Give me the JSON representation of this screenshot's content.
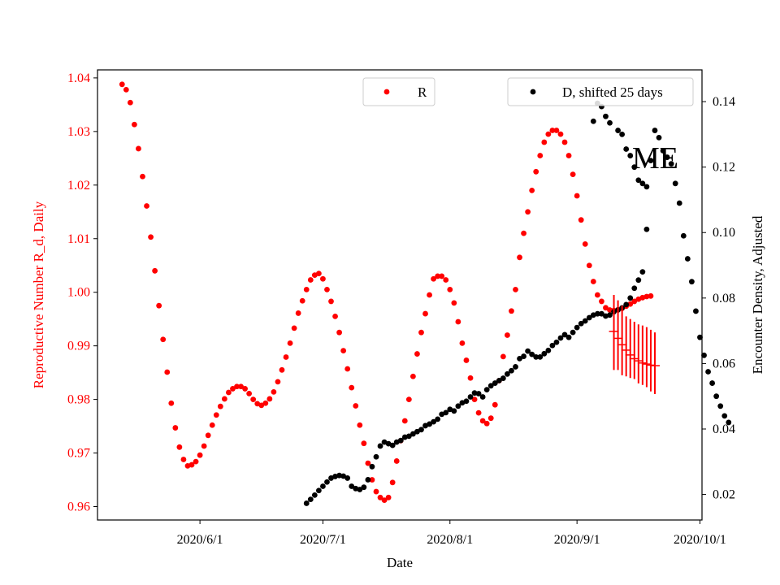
{
  "chart_data": {
    "type": "scatter",
    "xlabel": "Date",
    "ylabel_left": "Reproductive Number R_d, Daily",
    "ylabel_right": "Encounter Density, Adjusted",
    "annotation": "ME",
    "x_tick_labels": [
      "2020/6/1",
      "2020/7/1",
      "2020/8/1",
      "2020/9/1",
      "2020/10/1"
    ],
    "x_tick_days": [
      0,
      30,
      61,
      92,
      122
    ],
    "x_domain_days": [
      -25,
      122.5
    ],
    "ylim_left": [
      0.9575,
      1.0415
    ],
    "yticks_left": [
      "0.96",
      "0.97",
      "0.98",
      "0.99",
      "1.00",
      "1.01",
      "1.02",
      "1.03",
      "1.04"
    ],
    "ylim_right": [
      0.0122,
      0.1497
    ],
    "yticks_right": [
      "0.02",
      "0.04",
      "0.06",
      "0.08",
      "0.10",
      "0.12",
      "0.14"
    ],
    "colors": {
      "r_series": "#ff0000",
      "d_series": "#000000",
      "axis_left": "#ff0000"
    },
    "legend": {
      "r_label": "R",
      "d_label": "D, shifted 25 days",
      "r_placement": "top-center",
      "d_placement": "top-right"
    },
    "series_R": {
      "name": "R",
      "start_day": -19,
      "values": [
        1.0388,
        1.0378,
        1.0354,
        1.0313,
        1.0268,
        1.0216,
        1.0161,
        1.0103,
        1.004,
        0.9975,
        0.9912,
        0.9851,
        0.9793,
        0.9747,
        0.9711,
        0.9688,
        0.9676,
        0.9678,
        0.9684,
        0.9696,
        0.9713,
        0.9733,
        0.9752,
        0.9771,
        0.9787,
        0.9801,
        0.9813,
        0.982,
        0.9824,
        0.9824,
        0.982,
        0.9811,
        0.98,
        0.9792,
        0.9789,
        0.9793,
        0.9801,
        0.9814,
        0.9833,
        0.9855,
        0.9879,
        0.9905,
        0.9933,
        0.9961,
        0.9984,
        1.0005,
        1.0023,
        1.0032,
        1.0035,
        1.0025,
        1.0005,
        0.9983,
        0.9955,
        0.9925,
        0.9891,
        0.9857,
        0.9822,
        0.9788,
        0.9752,
        0.9718,
        0.9681,
        0.965,
        0.9628,
        0.9617,
        0.9612,
        0.9617,
        0.9645,
        0.9685,
        0.9723,
        0.976,
        0.98,
        0.9843,
        0.9885,
        0.9925,
        0.996,
        0.9995,
        1.0025,
        1.003,
        1.003,
        1.0023,
        1.0005,
        0.998,
        0.9945,
        0.9905,
        0.9873,
        0.984,
        0.98,
        0.9775,
        0.976,
        0.9755,
        0.9765,
        0.979,
        0.9835,
        0.988,
        0.992,
        0.9965,
        1.0005,
        1.0065,
        1.011,
        1.015,
        1.019,
        1.0225,
        1.0255,
        1.028,
        1.0295,
        1.0302,
        1.0302,
        1.0295,
        1.028,
        1.0255,
        1.022,
        1.018,
        1.0135,
        1.009,
        1.005,
        1.002,
        0.9995,
        0.9983,
        0.9971,
        0.9967,
        0.9966,
        0.9967,
        0.997,
        0.9974,
        0.9978,
        0.9983,
        0.9987,
        0.999,
        0.9992,
        0.9993
      ]
    },
    "forecast_R": {
      "start_day": 101,
      "values": [
        0.9927,
        0.9914,
        0.9902,
        0.9892,
        0.9883,
        0.9876,
        0.9872,
        0.9868,
        0.9866,
        0.9864,
        0.9863
      ],
      "error_low": [
        0.9855,
        0.9855,
        0.9845,
        0.9843,
        0.984,
        0.9838,
        0.983,
        0.9827,
        0.9823,
        0.9815,
        0.981
      ],
      "error_high": [
        0.9995,
        0.9985,
        0.9975,
        0.9955,
        0.995,
        0.9945,
        0.994,
        0.9938,
        0.9935,
        0.993,
        0.9925
      ]
    },
    "series_D": {
      "name": "D, shifted 25 days",
      "start_day": 26,
      "values": [
        0.0173,
        0.0185,
        0.0198,
        0.0212,
        0.0225,
        0.0238,
        0.025,
        0.0255,
        0.0258,
        0.0256,
        0.025,
        0.0225,
        0.0218,
        0.0215,
        0.0222,
        0.0245,
        0.0285,
        0.0315,
        0.0348,
        0.036,
        0.0355,
        0.035,
        0.036,
        0.0365,
        0.0375,
        0.0378,
        0.0385,
        0.0392,
        0.0398,
        0.041,
        0.0415,
        0.0422,
        0.043,
        0.0445,
        0.045,
        0.046,
        0.0455,
        0.047,
        0.048,
        0.0485,
        0.0498,
        0.051,
        0.0508,
        0.0498,
        0.052,
        0.0532,
        0.054,
        0.0548,
        0.0555,
        0.0568,
        0.0578,
        0.059,
        0.0615,
        0.0622,
        0.0638,
        0.0628,
        0.062,
        0.062,
        0.063,
        0.064,
        0.0655,
        0.0665,
        0.0678,
        0.0688,
        0.068,
        0.0695,
        0.071,
        0.0722,
        0.073,
        0.074,
        0.0748,
        0.0752,
        0.0752,
        0.0745,
        0.0748,
        0.0758,
        0.0764,
        0.077,
        0.078,
        0.08,
        0.083,
        0.0855,
        0.088,
        0.101,
        0.122,
        0.1312,
        0.129,
        0.125,
        0.123,
        0.121,
        0.115,
        0.109,
        0.099,
        0.092,
        0.085,
        0.076,
        0.068,
        0.0625,
        0.0575,
        0.054,
        0.05,
        0.047,
        0.044,
        0.042
      ]
    },
    "series_D_scatter_extra": {
      "days": [
        96,
        97,
        98,
        99,
        100,
        102,
        103,
        104,
        105,
        106,
        107,
        108,
        109
      ],
      "values": [
        0.134,
        0.1395,
        0.1385,
        0.1355,
        0.1335,
        0.1312,
        0.13,
        0.1255,
        0.1235,
        0.12,
        0.116,
        0.115,
        0.114
      ]
    }
  }
}
